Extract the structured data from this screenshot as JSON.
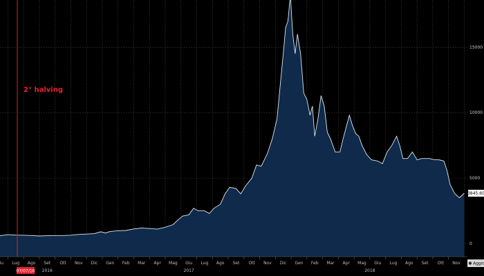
{
  "chart_data": {
    "type": "area",
    "colors": {
      "background": "#000000",
      "fill": "#0f2a4a",
      "line": "#dfe8f2",
      "grid": "#4a4a4a",
      "annotation": "#e8202a"
    },
    "yticks": [
      0,
      5000,
      10000,
      15000
    ],
    "ytick_labels": [
      "0",
      "5000",
      "10000",
      "15000"
    ],
    "ylim": [
      -1000,
      18600
    ],
    "months": [
      "Giu",
      "Lug",
      "Ago",
      "Set",
      "Ott",
      "Nov",
      "Dic",
      "Gen",
      "Feb",
      "Mar",
      "Apr",
      "Mag",
      "Giu",
      "Lug",
      "Ago",
      "Set",
      "Ott",
      "Nov",
      "Dic",
      "Gen",
      "Feb",
      "Mar",
      "Apr",
      "Mag",
      "Giu",
      "Lug",
      "Ago",
      "Set",
      "Ott",
      "Nov"
    ],
    "years": [
      {
        "label": "2016",
        "month_index": 3
      },
      {
        "label": "2017",
        "month_index": 12
      },
      {
        "label": "2018",
        "month_index": 23.5
      }
    ],
    "series": [
      {
        "points": [
          [
            0,
            600
          ],
          [
            0.5,
            680
          ],
          [
            1,
            650
          ],
          [
            1.5,
            640
          ],
          [
            2,
            620
          ],
          [
            2.5,
            580
          ],
          [
            3,
            600
          ],
          [
            3.5,
            620
          ],
          [
            4,
            620
          ],
          [
            4.5,
            640
          ],
          [
            5,
            700
          ],
          [
            5.5,
            730
          ],
          [
            6,
            760
          ],
          [
            6.4,
            900
          ],
          [
            6.7,
            810
          ],
          [
            7,
            930
          ],
          [
            7.5,
            980
          ],
          [
            8,
            1000
          ],
          [
            8.5,
            1120
          ],
          [
            9,
            1190
          ],
          [
            9.5,
            1150
          ],
          [
            10,
            1100
          ],
          [
            10.5,
            1250
          ],
          [
            11,
            1450
          ],
          [
            11.3,
            1800
          ],
          [
            11.6,
            2100
          ],
          [
            12,
            2200
          ],
          [
            12.3,
            2700
          ],
          [
            12.6,
            2500
          ],
          [
            13,
            2500
          ],
          [
            13.3,
            2300
          ],
          [
            13.6,
            2700
          ],
          [
            14,
            3000
          ],
          [
            14.3,
            3800
          ],
          [
            14.6,
            4300
          ],
          [
            15,
            4200
          ],
          [
            15.3,
            3800
          ],
          [
            15.6,
            4400
          ],
          [
            16,
            5000
          ],
          [
            16.3,
            6000
          ],
          [
            16.6,
            5900
          ],
          [
            17,
            6900
          ],
          [
            17.3,
            8000
          ],
          [
            17.6,
            9500
          ],
          [
            17.8,
            12000
          ],
          [
            18,
            14500
          ],
          [
            18.15,
            16500
          ],
          [
            18.3,
            17000
          ],
          [
            18.45,
            19000
          ],
          [
            18.6,
            16000
          ],
          [
            18.75,
            14500
          ],
          [
            18.9,
            16000
          ],
          [
            19.1,
            14500
          ],
          [
            19.3,
            11500
          ],
          [
            19.5,
            11000
          ],
          [
            19.7,
            9800
          ],
          [
            19.85,
            10500
          ],
          [
            20,
            8200
          ],
          [
            20.2,
            9500
          ],
          [
            20.4,
            11300
          ],
          [
            20.6,
            10500
          ],
          [
            20.8,
            8500
          ],
          [
            21,
            8000
          ],
          [
            21.3,
            7000
          ],
          [
            21.6,
            7000
          ],
          [
            21.8,
            8000
          ],
          [
            22,
            8900
          ],
          [
            22.2,
            9800
          ],
          [
            22.4,
            9000
          ],
          [
            22.6,
            8400
          ],
          [
            22.8,
            8200
          ],
          [
            23,
            7500
          ],
          [
            23.3,
            6800
          ],
          [
            23.6,
            6400
          ],
          [
            24,
            6300
          ],
          [
            24.3,
            6100
          ],
          [
            24.6,
            7000
          ],
          [
            24.9,
            7500
          ],
          [
            25.2,
            8200
          ],
          [
            25.4,
            7500
          ],
          [
            25.6,
            6500
          ],
          [
            25.9,
            6500
          ],
          [
            26.2,
            7000
          ],
          [
            26.5,
            6400
          ],
          [
            26.8,
            6500
          ],
          [
            27,
            6500
          ],
          [
            27.3,
            6500
          ],
          [
            27.6,
            6400
          ],
          [
            27.9,
            6400
          ],
          [
            28.2,
            6300
          ],
          [
            28.4,
            5600
          ],
          [
            28.6,
            4500
          ],
          [
            28.9,
            3800
          ],
          [
            29.2,
            3500
          ],
          [
            29.5,
            3845.6
          ]
        ]
      }
    ],
    "annotation": {
      "label": "2° halving",
      "date_label": "07/07/16",
      "x": 1.1
    },
    "last_value_label": "3845.60",
    "source_label": "Aggiorn"
  }
}
